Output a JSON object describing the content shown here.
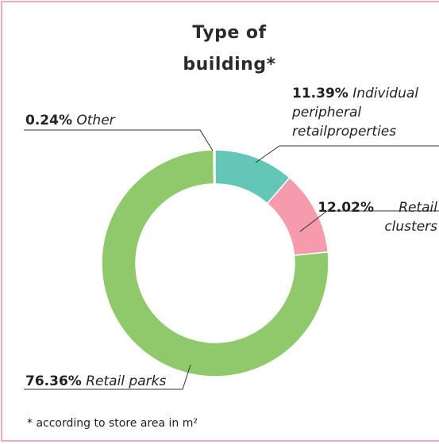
{
  "chart_data": {
    "type": "donut",
    "title": "Type of building*",
    "categories": [
      "Individual peripheral retailproperties",
      "Retail clusters",
      "Retail parks",
      "Other"
    ],
    "values": [
      11.39,
      12.02,
      76.36,
      0.24
    ],
    "value_labels": [
      "11.39%",
      "12.02%",
      "76.36%",
      "0.24%"
    ],
    "colors": [
      "#63c6b7",
      "#f59bad",
      "#8fc96b",
      "#e6e29c"
    ],
    "footnote": "* according to store area in m²"
  }
}
